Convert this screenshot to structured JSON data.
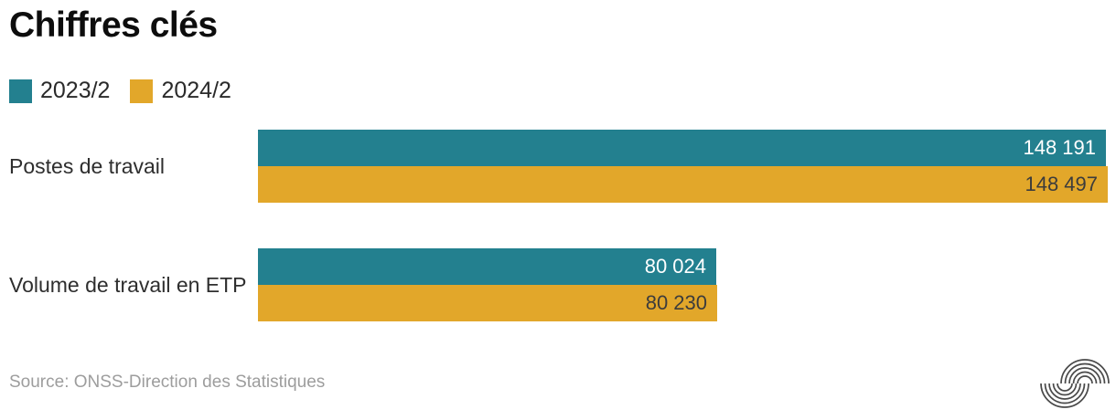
{
  "title": "Chiffres clés",
  "legend": {
    "items": [
      {
        "label": "2023/2",
        "color": "#23808F"
      },
      {
        "label": "2024/2",
        "color": "#E2A72A"
      }
    ]
  },
  "source_note": "Source: ONSS-Direction des Statistiques",
  "logo_icon": "onss-concentric-arcs-logo",
  "colors": {
    "series_2023": "#23808F",
    "series_2024": "#E2A72A",
    "value_text_on_teal": "#FFFFFF",
    "value_text_on_gold": "#3C3C3C",
    "source_text": "#9D9D9D",
    "logo": "#4A4A4A",
    "background": "#FFFFFF"
  },
  "chart_data": {
    "type": "bar",
    "orientation": "horizontal",
    "title": "Chiffres clés",
    "categories": [
      "Postes de travail",
      "Volume de travail en ETP"
    ],
    "series": [
      {
        "name": "2023/2",
        "color": "#23808F",
        "values": [
          148191,
          80024
        ],
        "value_labels": [
          "148 191",
          "80 024"
        ]
      },
      {
        "name": "2024/2",
        "color": "#E2A72A",
        "values": [
          148497,
          80230
        ],
        "value_labels": [
          "148 497",
          "80 230"
        ]
      }
    ],
    "xlim": [
      0,
      148497
    ],
    "grid": false,
    "legend_position": "top-left",
    "value_labels_inside_bars": true
  }
}
